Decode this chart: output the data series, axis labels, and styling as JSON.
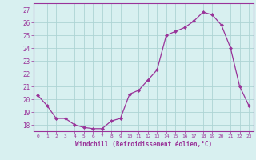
{
  "x": [
    0,
    1,
    2,
    3,
    4,
    5,
    6,
    7,
    8,
    9,
    10,
    11,
    12,
    13,
    14,
    15,
    16,
    17,
    18,
    19,
    20,
    21,
    22,
    23
  ],
  "y": [
    20.3,
    19.5,
    18.5,
    18.5,
    18.0,
    17.8,
    17.7,
    17.7,
    18.3,
    18.5,
    20.4,
    20.7,
    21.5,
    22.3,
    25.0,
    25.3,
    25.6,
    26.1,
    26.8,
    26.6,
    25.8,
    24.0,
    21.0,
    19.5
  ],
  "xlabel": "Windchill (Refroidissement éolien,°C)",
  "ylim": [
    17.5,
    27.5
  ],
  "yticks": [
    18,
    19,
    20,
    21,
    22,
    23,
    24,
    25,
    26,
    27
  ],
  "xticks": [
    0,
    1,
    2,
    3,
    4,
    5,
    6,
    7,
    8,
    9,
    10,
    11,
    12,
    13,
    14,
    15,
    16,
    17,
    18,
    19,
    20,
    21,
    22,
    23
  ],
  "line_color": "#993399",
  "marker_color": "#993399",
  "bg_color": "#d8f0f0",
  "grid_color": "#aed4d4"
}
